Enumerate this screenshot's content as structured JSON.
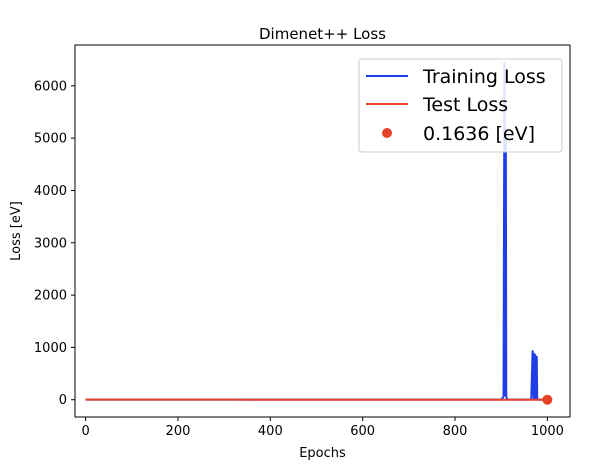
{
  "chart_data": {
    "type": "line",
    "title": "Dimenet++ Loss",
    "xlabel": "Epochs",
    "ylabel": "Loss [eV]",
    "xlim": [
      -23,
      1049
    ],
    "ylim": [
      -330,
      6780
    ],
    "xticks": [
      0,
      200,
      400,
      600,
      800,
      1000
    ],
    "yticks": [
      0,
      1000,
      2000,
      3000,
      4000,
      5000,
      6000
    ],
    "legend_position": "top-right",
    "series": [
      {
        "name": "Training Loss",
        "color": "#1f3ee8",
        "x": [
          0,
          100,
          200,
          300,
          400,
          500,
          600,
          700,
          800,
          900,
          905,
          907,
          909,
          910,
          911,
          913,
          915,
          940,
          965,
          968,
          970,
          971,
          972,
          973,
          974,
          975,
          976,
          977,
          978,
          980,
          1000
        ],
        "y": [
          3,
          2,
          2,
          2,
          1,
          1,
          1,
          1,
          1,
          1,
          60,
          6450,
          80,
          5200,
          60,
          5,
          2,
          2,
          2,
          930,
          30,
          880,
          20,
          860,
          10,
          830,
          8,
          820,
          5,
          2,
          2
        ]
      },
      {
        "name": "Test Loss",
        "color": "#e8412a",
        "x": [
          0,
          100,
          200,
          300,
          400,
          500,
          600,
          700,
          800,
          900,
          1000
        ],
        "y": [
          2,
          1,
          1,
          1,
          0.5,
          0.5,
          0.4,
          0.3,
          0.3,
          0.2,
          0.1636
        ]
      },
      {
        "name": "0.1636 [eV]",
        "type": "scatter",
        "color": "#e8412a",
        "x": [
          1000
        ],
        "y": [
          0.1636
        ]
      }
    ]
  }
}
